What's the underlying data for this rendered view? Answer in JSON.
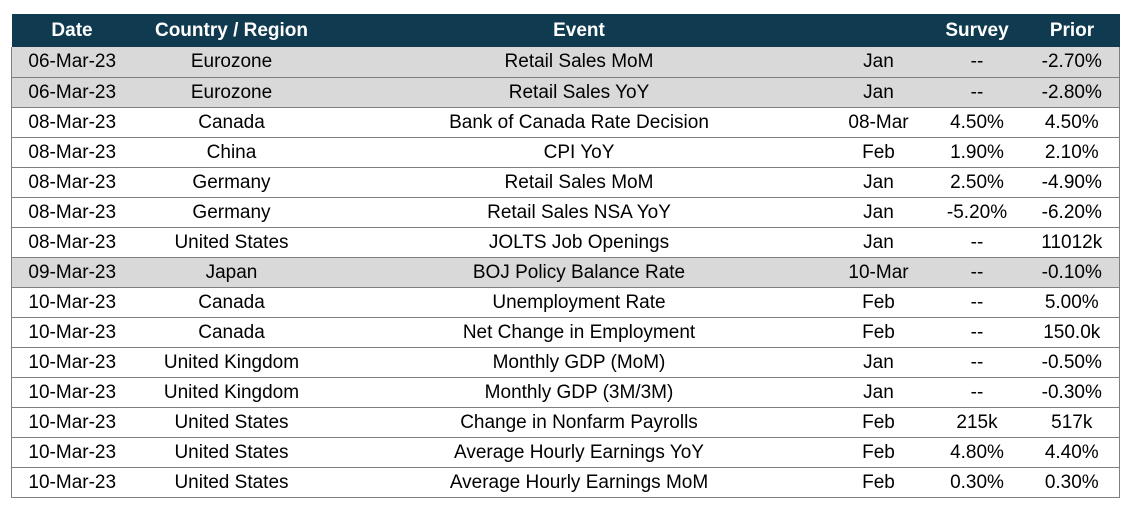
{
  "table": {
    "headers": [
      "Date",
      "Country / Region",
      "Event",
      "",
      "Survey",
      "Prior"
    ],
    "rows": [
      {
        "date": "06-Mar-23",
        "country": "Eurozone",
        "event": "Retail Sales MoM",
        "period": "Jan",
        "survey": "--",
        "prior": "-2.70%",
        "shaded": true
      },
      {
        "date": "06-Mar-23",
        "country": "Eurozone",
        "event": "Retail Sales YoY",
        "period": "Jan",
        "survey": "--",
        "prior": "-2.80%",
        "shaded": true
      },
      {
        "date": "08-Mar-23",
        "country": "Canada",
        "event": "Bank of Canada Rate Decision",
        "period": "08-Mar",
        "survey": "4.50%",
        "prior": "4.50%",
        "shaded": false
      },
      {
        "date": "08-Mar-23",
        "country": "China",
        "event": "CPI YoY",
        "period": "Feb",
        "survey": "1.90%",
        "prior": "2.10%",
        "shaded": false
      },
      {
        "date": "08-Mar-23",
        "country": "Germany",
        "event": "Retail Sales MoM",
        "period": "Jan",
        "survey": "2.50%",
        "prior": "-4.90%",
        "shaded": false
      },
      {
        "date": "08-Mar-23",
        "country": "Germany",
        "event": "Retail Sales NSA YoY",
        "period": "Jan",
        "survey": "-5.20%",
        "prior": "-6.20%",
        "shaded": false
      },
      {
        "date": "08-Mar-23",
        "country": "United States",
        "event": "JOLTS Job Openings",
        "period": "Jan",
        "survey": "--",
        "prior": "11012k",
        "shaded": false
      },
      {
        "date": "09-Mar-23",
        "country": "Japan",
        "event": "BOJ Policy Balance Rate",
        "period": "10-Mar",
        "survey": "--",
        "prior": "-0.10%",
        "shaded": true
      },
      {
        "date": "10-Mar-23",
        "country": "Canada",
        "event": "Unemployment Rate",
        "period": "Feb",
        "survey": "--",
        "prior": "5.00%",
        "shaded": false
      },
      {
        "date": "10-Mar-23",
        "country": "Canada",
        "event": "Net Change in Employment",
        "period": "Feb",
        "survey": "--",
        "prior": "150.0k",
        "shaded": false
      },
      {
        "date": "10-Mar-23",
        "country": "United Kingdom",
        "event": "Monthly GDP (MoM)",
        "period": "Jan",
        "survey": "--",
        "prior": "-0.50%",
        "shaded": false
      },
      {
        "date": "10-Mar-23",
        "country": "United Kingdom",
        "event": "Monthly GDP (3M/3M)",
        "period": "Jan",
        "survey": "--",
        "prior": "-0.30%",
        "shaded": false
      },
      {
        "date": "10-Mar-23",
        "country": "United States",
        "event": "Change in Nonfarm Payrolls",
        "period": "Feb",
        "survey": "215k",
        "prior": "517k",
        "shaded": false
      },
      {
        "date": "10-Mar-23",
        "country": "United States",
        "event": "Average Hourly Earnings YoY",
        "period": "Feb",
        "survey": "4.80%",
        "prior": "4.40%",
        "shaded": false
      },
      {
        "date": "10-Mar-23",
        "country": "United States",
        "event": "Average Hourly Earnings MoM",
        "period": "Feb",
        "survey": "0.30%",
        "prior": "0.30%",
        "shaded": false
      }
    ]
  },
  "colors": {
    "header_bg": "#0f3a4f",
    "header_text": "#ffffff",
    "shaded_row": "#d9d9d9"
  }
}
